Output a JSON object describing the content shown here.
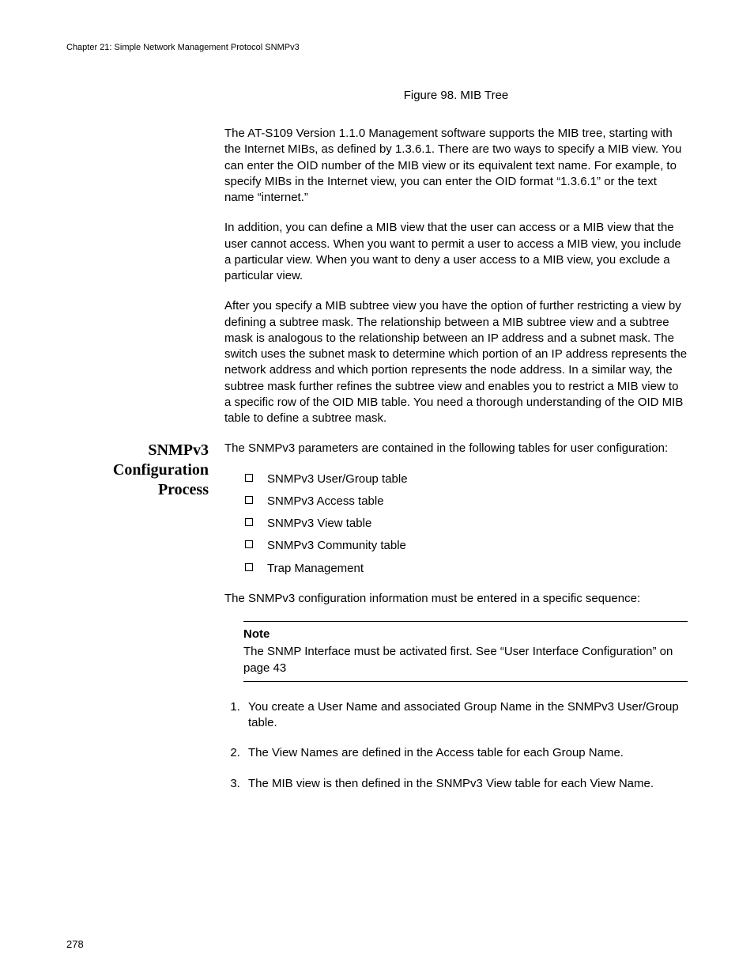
{
  "header": "Chapter 21: Simple Network Management Protocol SNMPv3",
  "figure_caption": "Figure 98. MIB Tree",
  "paragraphs": {
    "p1": "The AT-S109 Version 1.1.0  Management software supports the MIB tree, starting with the Internet MIBs, as defined by 1.3.6.1. There are two ways to specify a MIB view. You can enter the OID number of the MIB view or its equivalent text name. For example, to specify MIBs in the Internet view, you can enter the OID format “1.3.6.1” or the text name “internet.”",
    "p2": "In addition, you can define a MIB view that the user can access or a MIB view that the user cannot access. When you want to permit a user to access a MIB view, you include a particular view. When you want to deny a user access to a MIB view, you exclude a particular view.",
    "p3": "After you specify a MIB subtree view you have the option of further restricting a view by defining a subtree mask. The relationship between a MIB subtree view and a subtree mask is analogous to the relationship between an IP address and a subnet mask. The switch uses the subnet mask to determine which portion of an IP address represents the network address and which portion represents the node address. In a similar way, the subtree mask further refines the subtree view and enables you to restrict a MIB view to a specific row of the OID MIB table. You need a thorough understanding of the OID MIB table to define a subtree mask."
  },
  "section": {
    "heading": "SNMPv3 Configuration Process",
    "intro": "The SNMPv3 parameters are contained in the following tables for user configuration:",
    "bullets": [
      "SNMPv3 User/Group table",
      "SNMPv3 Access table",
      "SNMPv3 View table",
      "SNMPv3 Community table",
      "Trap Management"
    ],
    "outro": "The SNMPv3 configuration information must be entered in a specific sequence:",
    "note_label": "Note",
    "note_body": "The SNMP Interface must be activated first. See “User Interface Configuration” on page 43",
    "steps": [
      "You create a User Name and associated Group Name in the SNMPv3 User/Group table.",
      "The View Names are defined in the Access table for each Group Name.",
      "The MIB view is then defined in the SNMPv3 View table for each View Name."
    ]
  },
  "page_number": "278"
}
